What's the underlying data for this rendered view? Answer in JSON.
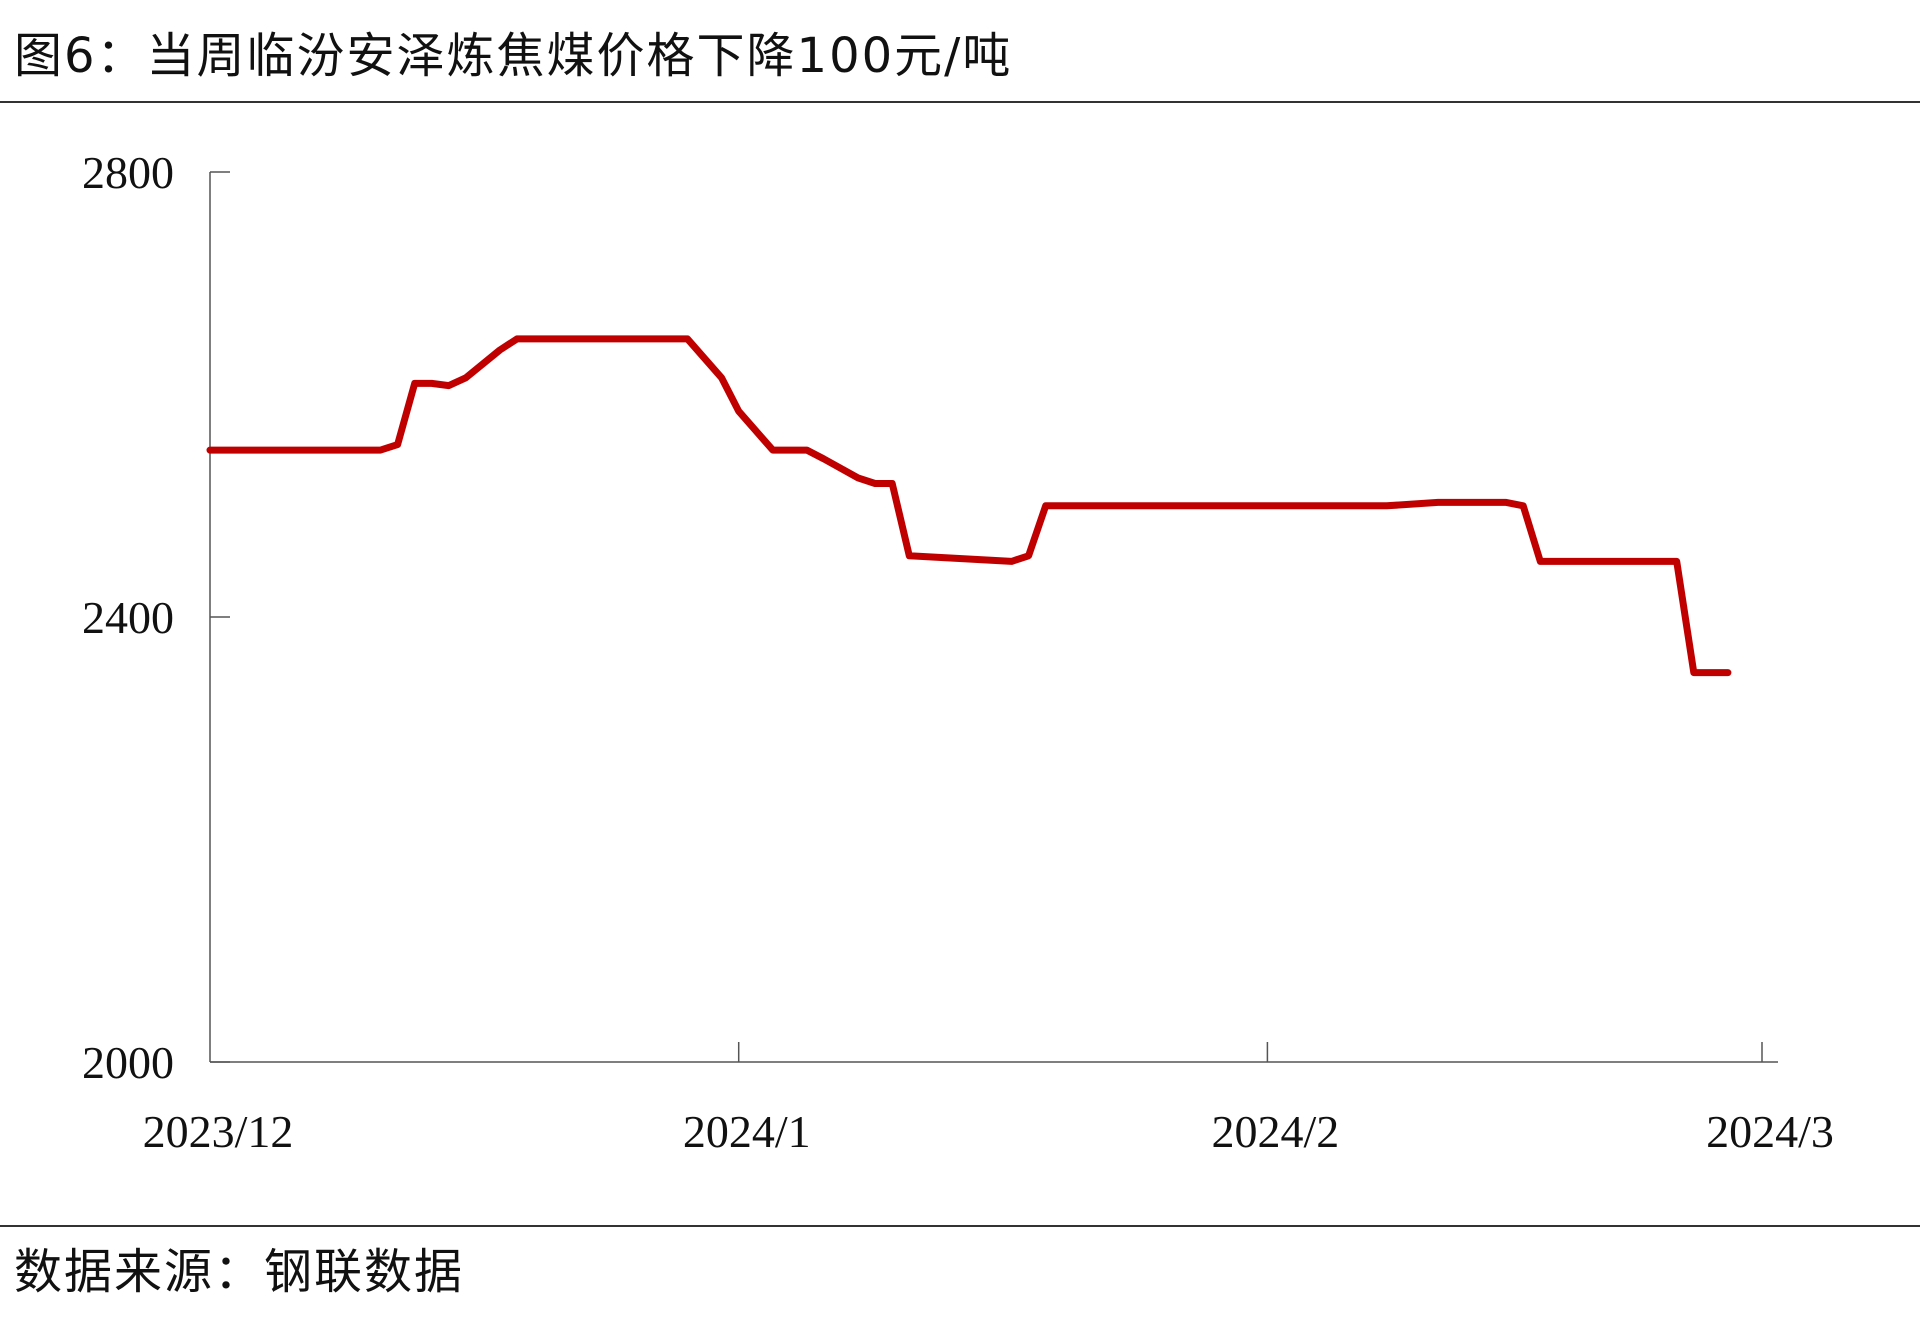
{
  "title": "图6：当周临汾安泽炼焦煤价格下降100元/吨",
  "source": "数据来源：钢联数据",
  "colors": {
    "line": "#c00000",
    "axis": "#555555",
    "text": "#111111"
  },
  "chart_data": {
    "type": "line",
    "title": "图6：当周临汾安泽炼焦煤价格下降100元/吨",
    "xlabel": "",
    "ylabel": "",
    "x_range": [
      "2023-12-01",
      "2024-03-01"
    ],
    "ylim": [
      2000,
      2800
    ],
    "y_ticks": [
      2000,
      2400,
      2800
    ],
    "x_ticks": [
      {
        "date": "2023-12-01",
        "label": "2023/12"
      },
      {
        "date": "2024-01-01",
        "label": "2024/1"
      },
      {
        "date": "2024-02-01",
        "label": "2024/2"
      },
      {
        "date": "2024-03-01",
        "label": "2024/3"
      }
    ],
    "grid": false,
    "legend": "none",
    "series": [
      {
        "points": [
          [
            "2023-12-01",
            2550
          ],
          [
            "2023-12-11",
            2550
          ],
          [
            "2023-12-12",
            2555
          ],
          [
            "2023-12-13",
            2610
          ],
          [
            "2023-12-14",
            2610
          ],
          [
            "2023-12-15",
            2608
          ],
          [
            "2023-12-16",
            2615
          ],
          [
            "2023-12-18",
            2640
          ],
          [
            "2023-12-19",
            2650
          ],
          [
            "2023-12-28",
            2650
          ],
          [
            "2023-12-29",
            2650
          ],
          [
            "2023-12-31",
            2615
          ],
          [
            "2024-01-01",
            2585
          ],
          [
            "2024-01-03",
            2550
          ],
          [
            "2024-01-05",
            2550
          ],
          [
            "2024-01-06",
            2542
          ],
          [
            "2024-01-08",
            2525
          ],
          [
            "2024-01-09",
            2520
          ],
          [
            "2024-01-10",
            2520
          ],
          [
            "2024-01-11",
            2455
          ],
          [
            "2024-01-17",
            2450
          ],
          [
            "2024-01-18",
            2455
          ],
          [
            "2024-01-19",
            2500
          ],
          [
            "2024-01-21",
            2500
          ],
          [
            "2024-02-08",
            2500
          ],
          [
            "2024-02-11",
            2503
          ],
          [
            "2024-02-15",
            2503
          ],
          [
            "2024-02-16",
            2500
          ],
          [
            "2024-02-17",
            2450
          ],
          [
            "2024-02-24",
            2450
          ],
          [
            "2024-02-25",
            2450
          ],
          [
            "2024-02-26",
            2350
          ],
          [
            "2024-02-27",
            2350
          ],
          [
            "2024-02-28",
            2350
          ]
        ]
      }
    ]
  }
}
